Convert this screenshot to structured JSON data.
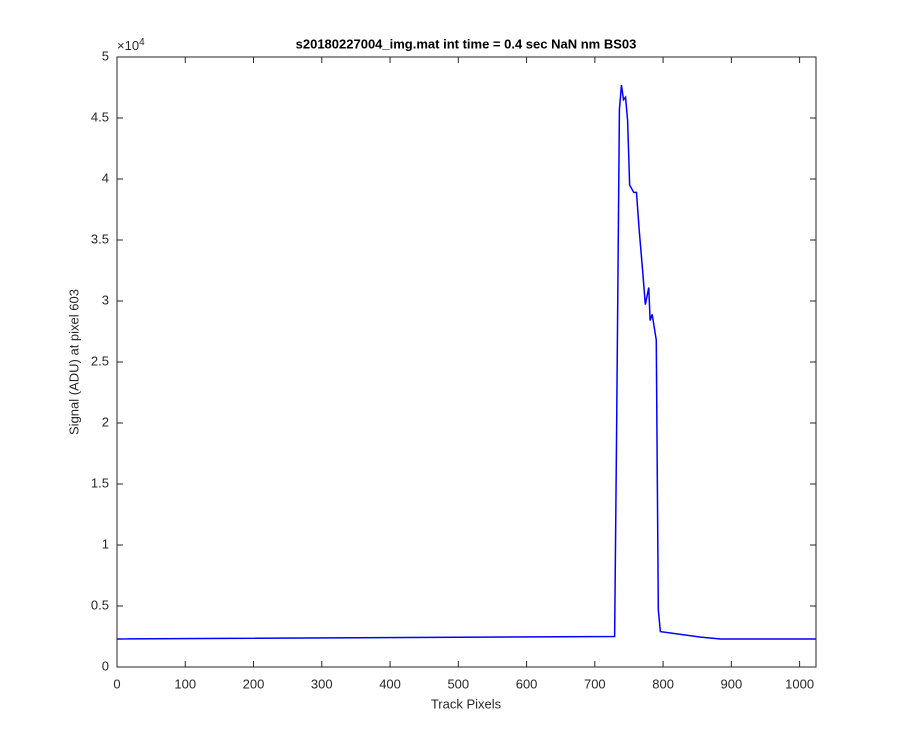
{
  "chart_data": {
    "type": "line",
    "title": "s20180227004_img.mat int time = 0.4 sec  NaN nm BS03",
    "x_label": "Track Pixels",
    "y_label": "Signal (ADU) at pixel 603",
    "y_exponent": {
      "base": "×10",
      "power": "4"
    },
    "xlim": [
      0,
      1024
    ],
    "ylim": [
      0,
      50000
    ],
    "xticks": [
      0,
      100,
      200,
      300,
      400,
      500,
      600,
      700,
      800,
      900,
      1000
    ],
    "yticks": [
      0,
      {
        "value": 5000,
        "label": "0.5"
      },
      {
        "value": 10000,
        "label": "1"
      },
      {
        "value": 15000,
        "label": "1.5"
      },
      {
        "value": 20000,
        "label": "2"
      },
      {
        "value": 25000,
        "label": "2.5"
      },
      {
        "value": 30000,
        "label": "3"
      },
      {
        "value": 35000,
        "label": "3.5"
      },
      {
        "value": 40000,
        "label": "4"
      },
      {
        "value": 45000,
        "label": "4.5"
      },
      {
        "value": 50000,
        "label": "5"
      }
    ],
    "x": [
      0,
      729,
      732,
      736,
      739,
      742,
      745,
      748,
      751,
      757,
      761,
      765,
      770,
      774,
      779,
      781,
      784,
      790,
      793,
      796,
      855,
      884,
      1024
    ],
    "series": [
      {
        "color": "#0000ff",
        "values": [
          2300,
          2500,
          20000,
          45700,
          47700,
          46500,
          46700,
          44800,
          39500,
          38900,
          38900,
          35800,
          32500,
          29700,
          31100,
          28400,
          28900,
          26800,
          4700,
          2900,
          2450,
          2300,
          2300
        ]
      }
    ]
  }
}
